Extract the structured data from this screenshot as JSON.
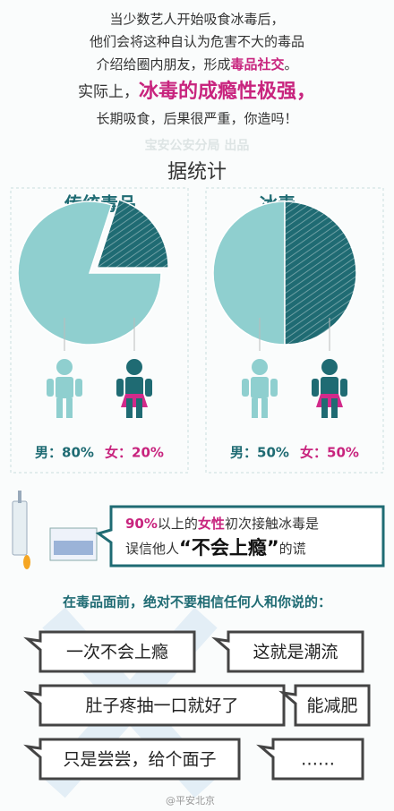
{
  "intro": {
    "line1": "当少数艺人开始吸食冰毒后，",
    "line2": "他们会将这种自认为危害不大的毒品",
    "line3a": "介绍给圈内朋友，形成",
    "line3b": "毒品社交",
    "line3c": "。",
    "line4a": "实际上，",
    "line4b": "冰毒的成瘾性极强，",
    "line5": "长期吸食，后果很严重，你造吗！"
  },
  "watermark": "宝安公安分局 出品",
  "stats_heading": "据统计",
  "chart_data": [
    {
      "type": "pie",
      "title": "传统毒品",
      "categories": [
        "男",
        "女"
      ],
      "values": [
        80,
        20
      ],
      "value_labels": [
        "男：80%",
        "女：20%"
      ],
      "colors": [
        "#8fcfcf",
        "#1f6b73"
      ]
    },
    {
      "type": "pie",
      "title": "冰毒",
      "categories": [
        "男",
        "女"
      ],
      "values": [
        50,
        50
      ],
      "value_labels": [
        "男：50%",
        "女：50%"
      ],
      "colors": [
        "#8fcfcf",
        "#1f6b73"
      ]
    }
  ],
  "callout": {
    "p1": "90%",
    "p2": "以上的",
    "p3": "女性",
    "p4": "初次接触冰毒是",
    "p5": "误信他人",
    "p6": "“不会上瘾”",
    "p7": "的谎"
  },
  "warning": "在毒品面前，绝对不要相信任何人和你说的：",
  "bubbles": [
    "一次不会上瘾",
    "这就是潮流",
    "肚子疼抽一口就好了",
    "能减肥",
    "只是尝尝，给个面子",
    "……"
  ],
  "footer": "@平安北京"
}
